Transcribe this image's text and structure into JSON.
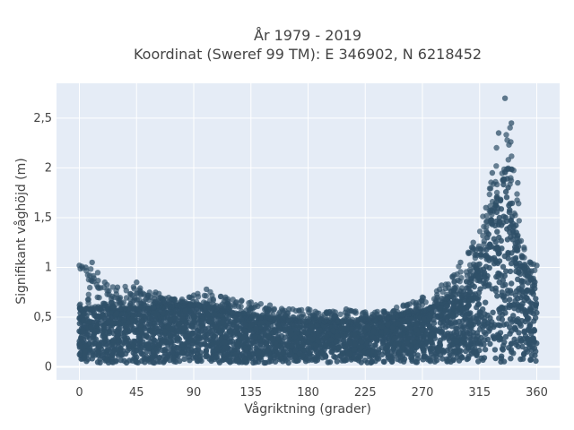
{
  "chart_data": {
    "type": "scatter",
    "title_line1": "År 1979 - 2019",
    "title_line2": "Koordinat (Sweref 99 TM): E 346902, N 6218452",
    "xlabel": "Vågriktning (grader)",
    "ylabel": "Signifikant våghöjd (m)",
    "xlim": [
      -18,
      378
    ],
    "ylim": [
      -0.13,
      2.85
    ],
    "xticks": [
      {
        "value": 0,
        "label": "0"
      },
      {
        "value": 45,
        "label": "45"
      },
      {
        "value": 90,
        "label": "90"
      },
      {
        "value": 135,
        "label": "135"
      },
      {
        "value": 180,
        "label": "180"
      },
      {
        "value": 225,
        "label": "225"
      },
      {
        "value": 270,
        "label": "270"
      },
      {
        "value": 315,
        "label": "315"
      },
      {
        "value": 360,
        "label": "360"
      }
    ],
    "yticks": [
      {
        "value": 0,
        "label": "0"
      },
      {
        "value": 0.5,
        "label": "0,5"
      },
      {
        "value": 1,
        "label": "1"
      },
      {
        "value": 1.5,
        "label": "1,5"
      },
      {
        "value": 2,
        "label": "2"
      },
      {
        "value": 2.5,
        "label": "2,5"
      }
    ],
    "grid": true,
    "marker_color": "#2f5068",
    "plot_background": "#e5ecf6",
    "envelope": [
      {
        "x": 0,
        "y": 1.02
      },
      {
        "x": 5,
        "y": 1.0
      },
      {
        "x": 10,
        "y": 1.05
      },
      {
        "x": 20,
        "y": 0.85
      },
      {
        "x": 30,
        "y": 0.8
      },
      {
        "x": 45,
        "y": 0.85
      },
      {
        "x": 60,
        "y": 0.75
      },
      {
        "x": 75,
        "y": 0.68
      },
      {
        "x": 90,
        "y": 0.72
      },
      {
        "x": 100,
        "y": 0.78
      },
      {
        "x": 115,
        "y": 0.7
      },
      {
        "x": 135,
        "y": 0.65
      },
      {
        "x": 150,
        "y": 0.62
      },
      {
        "x": 165,
        "y": 0.58
      },
      {
        "x": 180,
        "y": 0.58
      },
      {
        "x": 195,
        "y": 0.55
      },
      {
        "x": 210,
        "y": 0.58
      },
      {
        "x": 225,
        "y": 0.55
      },
      {
        "x": 240,
        "y": 0.56
      },
      {
        "x": 255,
        "y": 0.62
      },
      {
        "x": 270,
        "y": 0.7
      },
      {
        "x": 285,
        "y": 0.82
      },
      {
        "x": 300,
        "y": 1.05
      },
      {
        "x": 310,
        "y": 1.25
      },
      {
        "x": 320,
        "y": 1.6
      },
      {
        "x": 325,
        "y": 1.95
      },
      {
        "x": 330,
        "y": 2.35
      },
      {
        "x": 335,
        "y": 2.7
      },
      {
        "x": 340,
        "y": 2.45
      },
      {
        "x": 345,
        "y": 1.85
      },
      {
        "x": 350,
        "y": 1.2
      },
      {
        "x": 355,
        "y": 1.05
      },
      {
        "x": 360,
        "y": 1.02
      }
    ],
    "dense_upper": [
      {
        "x": 0,
        "y": 0.58
      },
      {
        "x": 45,
        "y": 0.58
      },
      {
        "x": 90,
        "y": 0.62
      },
      {
        "x": 135,
        "y": 0.5
      },
      {
        "x": 180,
        "y": 0.45
      },
      {
        "x": 225,
        "y": 0.45
      },
      {
        "x": 270,
        "y": 0.55
      },
      {
        "x": 300,
        "y": 0.75
      },
      {
        "x": 315,
        "y": 1.05
      },
      {
        "x": 330,
        "y": 1.75
      },
      {
        "x": 337,
        "y": 2.0
      },
      {
        "x": 345,
        "y": 1.3
      },
      {
        "x": 352,
        "y": 0.9
      },
      {
        "x": 360,
        "y": 0.85
      }
    ]
  }
}
